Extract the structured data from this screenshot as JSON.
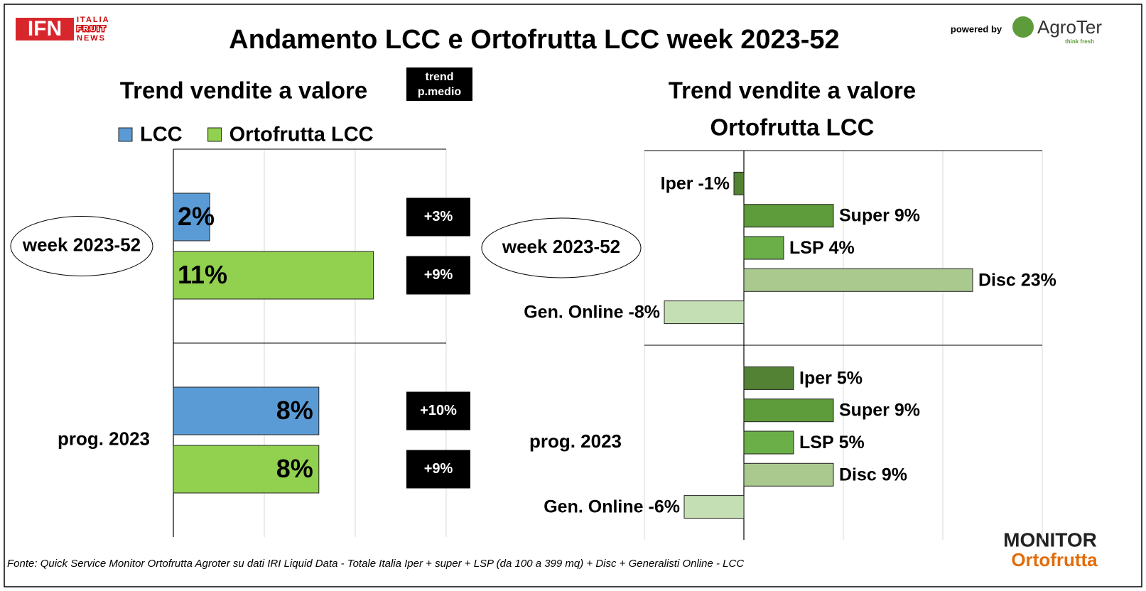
{
  "header": {
    "title": "Andamento LCC e Ortofrutta LCC week 2023-52",
    "logo_left": "IFN",
    "logo_left_sub": [
      "ITALIA",
      "FRUIT",
      "NEWS"
    ],
    "powered_by": "powered by",
    "logo_right": "AgroTer",
    "logo_right_sub": "think fresh",
    "logo_bottom": [
      "MONITOR",
      "Ortofrutta"
    ]
  },
  "footer": {
    "source": "Fonte: Quick Service Monitor Ortofrutta Agroter su dati IRI Liquid Data - Totale Italia Iper + super + LSP (da 100 a 399 mq) + Disc + Generalisti Online - LCC"
  },
  "chart_data": [
    {
      "type": "hbar",
      "title": "Trend vendite a valore",
      "trend_title": "trend p.medio",
      "categories": [
        "week 2023-52",
        "prog. 2023"
      ],
      "xlim": [
        0,
        15
      ],
      "xgrid": [
        0,
        5,
        10,
        15
      ],
      "series": [
        {
          "name": "LCC",
          "color": "#5b9bd5",
          "values": [
            2,
            8
          ],
          "value_labels": [
            "2%",
            "8%"
          ],
          "trend_labels": [
            "+3%",
            "+10%"
          ]
        },
        {
          "name": "Ortofrutta LCC",
          "color": "#92d050",
          "values": [
            11,
            8
          ],
          "value_labels": [
            "11%",
            "8%"
          ],
          "trend_labels": [
            "+9%",
            "+9%"
          ]
        }
      ]
    },
    {
      "type": "hbar",
      "title": [
        "Trend vendite a valore",
        "Ortofrutta LCC"
      ],
      "categories": [
        "week 2023-52",
        "prog. 2023"
      ],
      "xlim": [
        -10,
        30
      ],
      "xgrid": [
        -10,
        0,
        10,
        20,
        30
      ],
      "series": [
        {
          "name": "Iper",
          "color": "#548235",
          "values": [
            -1,
            5
          ],
          "value_labels": [
            "-1%",
            "5%"
          ]
        },
        {
          "name": "Super",
          "color": "#5e9b3a",
          "values": [
            9,
            9
          ],
          "value_labels": [
            "9%",
            "9%"
          ]
        },
        {
          "name": "LSP",
          "color": "#6aaf47",
          "values": [
            4,
            5
          ],
          "value_labels": [
            "4%",
            "5%"
          ]
        },
        {
          "name": "Disc",
          "color": "#a9c98f",
          "values": [
            23,
            9
          ],
          "value_labels": [
            "23%",
            "9%"
          ]
        },
        {
          "name": "Gen. Online",
          "color": "#c5dfb4",
          "values": [
            -8,
            -6
          ],
          "value_labels": [
            "-8%",
            "-6%"
          ]
        }
      ]
    }
  ]
}
